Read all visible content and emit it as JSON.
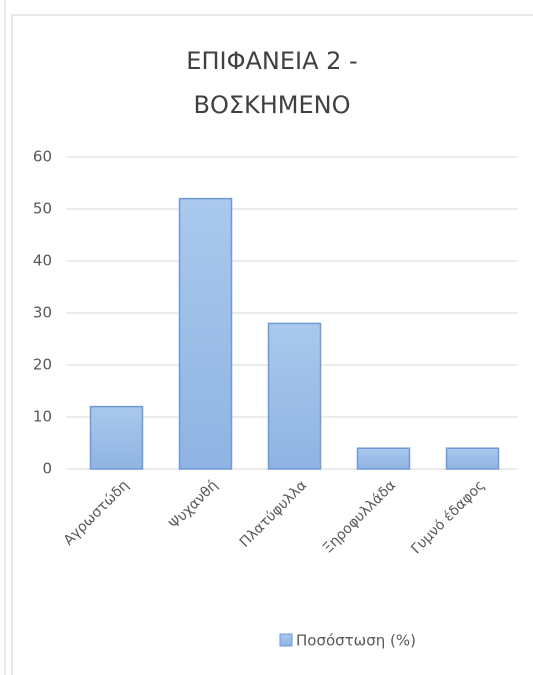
{
  "chart_data": {
    "type": "bar",
    "title": [
      "ΕΠΙΦΑΝΕΙΑ 2  -",
      "ΒΟΣΚΗΜΕΝΟ"
    ],
    "categories": [
      "Αγρωστώδη",
      "Ψυχανθή",
      "Πλατύφυλλα",
      "Ξηροφυλλάδα",
      "Γυμνό έδαφος"
    ],
    "series": [
      {
        "name": "Ποσόστωση (%)",
        "color": "#9dc3e6",
        "values": [
          12,
          52,
          28,
          4,
          4
        ]
      }
    ],
    "ylim": [
      0,
      60
    ],
    "yticks": [
      0,
      10,
      20,
      30,
      40,
      50,
      60
    ],
    "grid": true,
    "legend": "bottom"
  }
}
